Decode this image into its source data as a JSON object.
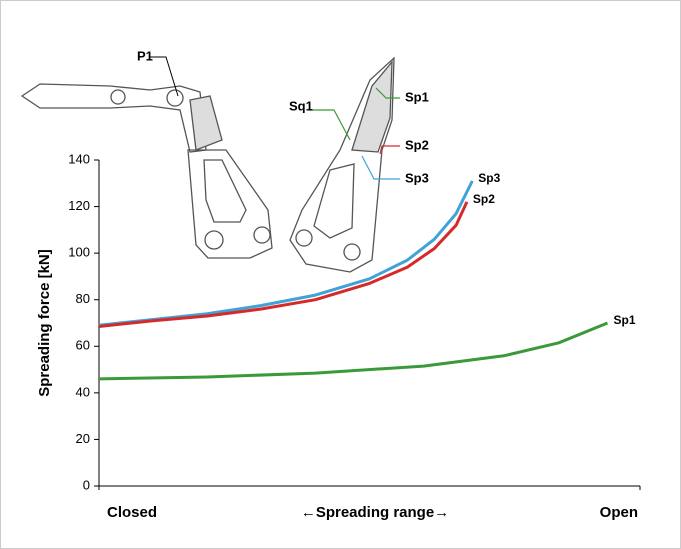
{
  "chart_data": {
    "type": "line",
    "y_label": "Spreading force [kN]",
    "x_label": "←Spreading range→",
    "xlim": [
      0,
      100
    ],
    "xticks": [
      {
        "value": 0,
        "label": "Closed"
      },
      {
        "value": 100,
        "label": "Open"
      }
    ],
    "ylim": [
      0,
      140
    ],
    "yticks": [
      0,
      20,
      40,
      60,
      80,
      100,
      120,
      140
    ],
    "grid": false,
    "annotations": [
      "P1",
      "Sq1",
      "Sp1",
      "Sp2",
      "Sp3"
    ],
    "series": [
      {
        "name": "Sp3",
        "color": "#3fa2d8",
        "x": [
          0,
          10,
          20,
          30,
          40,
          50,
          57,
          62,
          66,
          69
        ],
        "values": [
          69,
          71.5,
          74,
          77.5,
          82,
          89,
          97,
          106,
          117,
          131
        ]
      },
      {
        "name": "Sp2",
        "color": "#d62a2a",
        "x": [
          0,
          10,
          20,
          30,
          40,
          50,
          57,
          62,
          66,
          68
        ],
        "values": [
          68.5,
          71,
          73,
          76,
          80,
          87,
          94,
          102,
          112,
          122
        ]
      },
      {
        "name": "Sp1",
        "color": "#3a9a3a",
        "x": [
          0,
          20,
          40,
          60,
          75,
          85,
          94
        ],
        "values": [
          46,
          46.8,
          48.5,
          51.5,
          56,
          61.5,
          70
        ]
      }
    ]
  }
}
